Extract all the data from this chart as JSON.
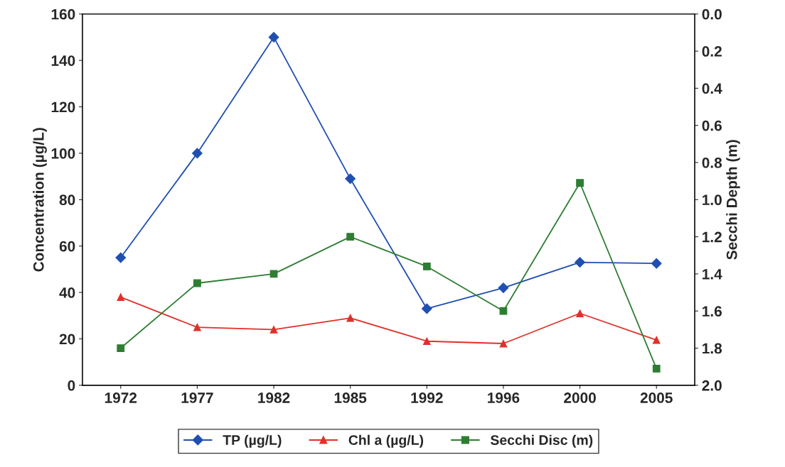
{
  "chart_data": {
    "type": "line",
    "categories": [
      "1972",
      "1977",
      "1982",
      "1985",
      "1992",
      "1996",
      "2000",
      "2005"
    ],
    "ylabel": "Concentration (µg/L)",
    "y2label": "Secchi Depth (m)",
    "ylim": [
      0,
      160
    ],
    "yticks": [
      0,
      20,
      40,
      60,
      80,
      100,
      120,
      140,
      160
    ],
    "y2lim": [
      2.0,
      0.0
    ],
    "y2ticks": [
      {
        "value": 0,
        "label": "0.0"
      },
      0.2,
      0.4,
      0.6,
      0.8,
      {
        "value": 1,
        "label": "1.0"
      },
      1.2,
      1.4,
      1.6,
      1.8,
      {
        "value": 2,
        "label": "2.0"
      }
    ],
    "grid": false,
    "legend": "bottom",
    "line_style": "solid",
    "series": [
      {
        "name": "TP (µg/L)",
        "color": "#1f4fb0",
        "marker": "diamond",
        "values": [
          55,
          100,
          150,
          89,
          33,
          42,
          53,
          52.5
        ]
      },
      {
        "name": "Chl a (µg/L)",
        "color": "#e0302a",
        "marker": "triangle",
        "values": [
          38,
          25,
          24,
          29,
          19,
          18,
          31,
          19.5
        ]
      },
      {
        "name": "Secchi Disc (m)",
        "color": "#2e7d32",
        "marker": "square",
        "axis": "y2",
        "values": [
          1.8,
          1.45,
          1.4,
          1.2,
          1.36,
          1.6,
          0.91,
          1.91
        ]
      }
    ]
  }
}
